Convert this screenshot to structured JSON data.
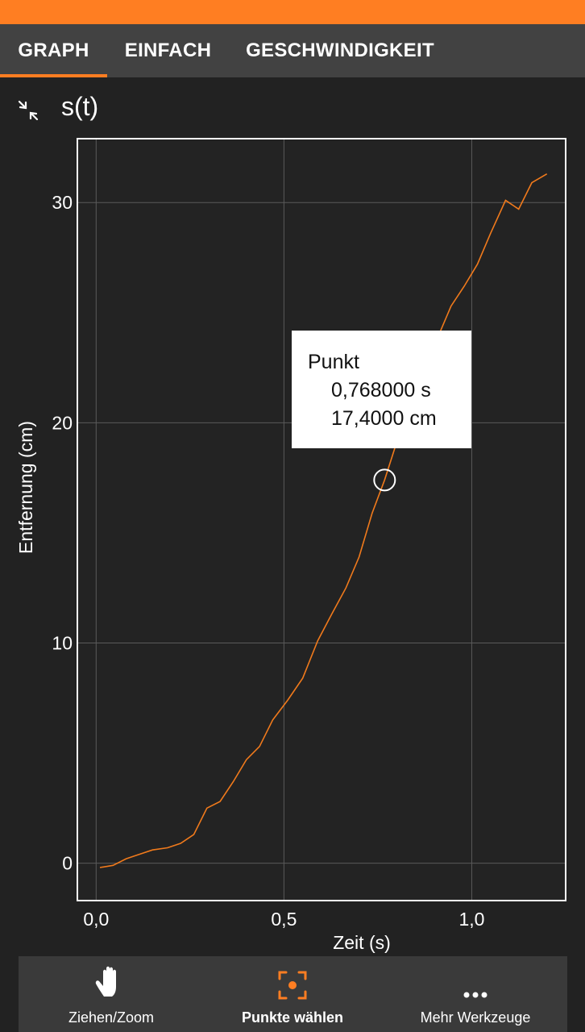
{
  "tabs": [
    {
      "label": "GRAPH",
      "active": true
    },
    {
      "label": "EINFACH",
      "active": false
    },
    {
      "label": "GESCHWINDIGKEIT",
      "active": false
    }
  ],
  "graph": {
    "title": "s(t)",
    "collapse_icon": "collapse-arrows-icon"
  },
  "tooltip": {
    "heading": "Punkt",
    "time": "0,768000 s",
    "distance": "17,4000 cm"
  },
  "chart_data": {
    "type": "line",
    "xlabel": "Zeit (s)",
    "ylabel": "Entfernung (cm)",
    "xlim": [
      -0.05,
      1.25
    ],
    "ylim": [
      -1.7,
      32.9
    ],
    "x_ticks": [
      0.0,
      0.5,
      1.0
    ],
    "x_tick_labels": [
      "0,0",
      "0,5",
      "1,0"
    ],
    "y_ticks": [
      0,
      10,
      20,
      30
    ],
    "y_tick_labels": [
      "0",
      "10",
      "20",
      "30"
    ],
    "grid": true,
    "series": [
      {
        "color": "#f07a1c",
        "x": [
          0.01,
          0.045,
          0.08,
          0.115,
          0.15,
          0.19,
          0.225,
          0.26,
          0.295,
          0.33,
          0.365,
          0.4,
          0.435,
          0.47,
          0.51,
          0.55,
          0.59,
          0.63,
          0.665,
          0.7,
          0.735,
          0.768,
          0.8,
          0.835,
          0.87,
          0.905,
          0.945,
          0.98,
          1.015,
          1.05,
          1.09,
          1.125,
          1.16,
          1.2
        ],
        "y": [
          -0.2,
          -0.1,
          0.2,
          0.4,
          0.6,
          0.7,
          0.9,
          1.3,
          2.5,
          2.8,
          3.7,
          4.7,
          5.3,
          6.5,
          7.4,
          8.4,
          10.1,
          11.4,
          12.5,
          13.9,
          15.9,
          17.4,
          19.1,
          20.8,
          22.5,
          23.7,
          25.3,
          26.2,
          27.2,
          28.6,
          30.1,
          29.7,
          30.9,
          31.3
        ]
      }
    ],
    "selected_point": {
      "x": 0.768,
      "y": 17.4
    }
  },
  "bottom_tools": [
    {
      "label": "Ziehen/Zoom",
      "icon": "hand-icon",
      "active": false
    },
    {
      "label": "Punkte wählen",
      "icon": "select-point-icon",
      "active": true
    },
    {
      "label": "Mehr Werkzeuge",
      "icon": "more-dots-icon",
      "active": false
    }
  ],
  "colors": {
    "accent": "#ff7e22",
    "background": "#222222",
    "tabbar": "#424242",
    "plot_line": "#f07a1c"
  }
}
